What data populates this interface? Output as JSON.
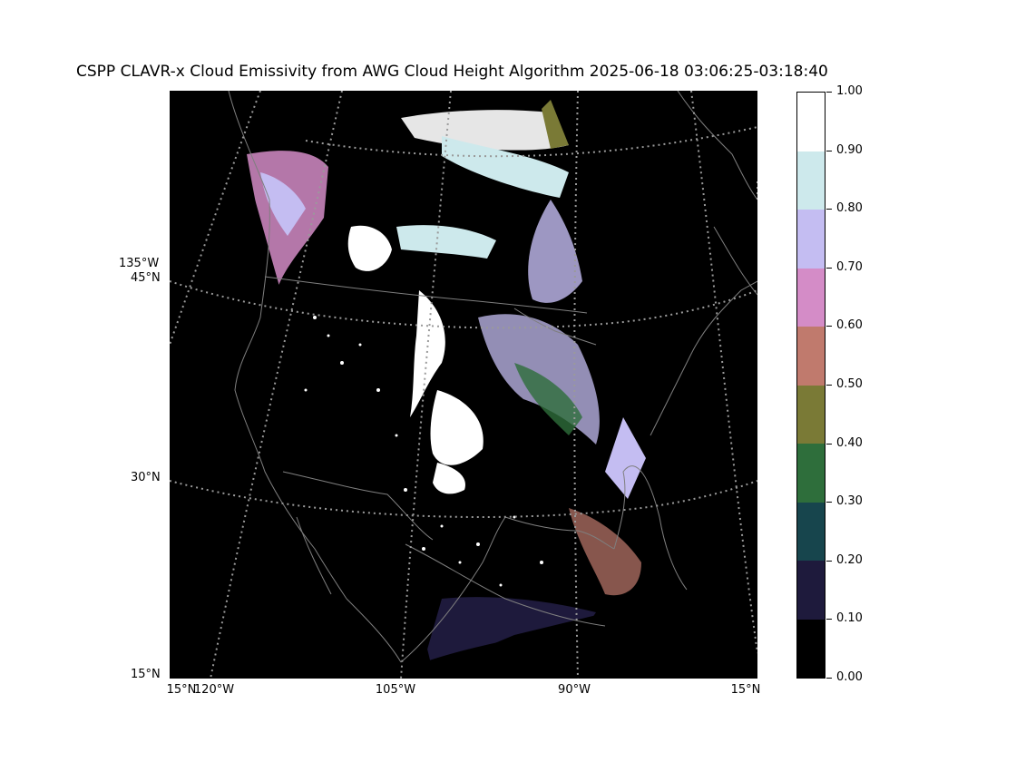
{
  "figure": {
    "title": "CSPP CLAVR-x Cloud Emissivity from AWG Cloud Height Algorithm 2025-06-18 03:06:25-03:18:40"
  },
  "map": {
    "projection": "lambert-conformal",
    "background_color": "#000000",
    "coastline_color": "#7f7f7f",
    "gridline_style": "dotted",
    "left_labels": [
      {
        "text": "135°W",
        "lat_deg": 45
      },
      {
        "text": "45°N",
        "lat_deg": 45
      },
      {
        "text": "30°N",
        "lat_deg": 30
      },
      {
        "text": "15°N",
        "lat_deg": 15
      }
    ],
    "bottom_labels": [
      {
        "text": "15°N"
      },
      {
        "text": "120°W"
      },
      {
        "text": "105°W"
      },
      {
        "text": "90°W"
      },
      {
        "text": "15°N"
      }
    ]
  },
  "colorbar": {
    "range": [
      0.0,
      1.0
    ],
    "ticks": [
      "0.00",
      "0.10",
      "0.20",
      "0.30",
      "0.40",
      "0.50",
      "0.60",
      "0.70",
      "0.80",
      "0.90",
      "1.00"
    ],
    "bins": [
      {
        "from": 0.0,
        "to": 0.1,
        "color": "#000000"
      },
      {
        "from": 0.1,
        "to": 0.2,
        "color": "#1e1a3c"
      },
      {
        "from": 0.2,
        "to": 0.3,
        "color": "#17454d"
      },
      {
        "from": 0.3,
        "to": 0.4,
        "color": "#2e6e3b"
      },
      {
        "from": 0.4,
        "to": 0.5,
        "color": "#7a7a36"
      },
      {
        "from": 0.5,
        "to": 0.6,
        "color": "#c07a6d"
      },
      {
        "from": 0.6,
        "to": 0.7,
        "color": "#d48cc7"
      },
      {
        "from": 0.7,
        "to": 0.8,
        "color": "#c4bdf2"
      },
      {
        "from": 0.8,
        "to": 0.9,
        "color": "#cde9ec"
      },
      {
        "from": 0.9,
        "to": 1.0,
        "color": "#ffffff"
      }
    ]
  }
}
